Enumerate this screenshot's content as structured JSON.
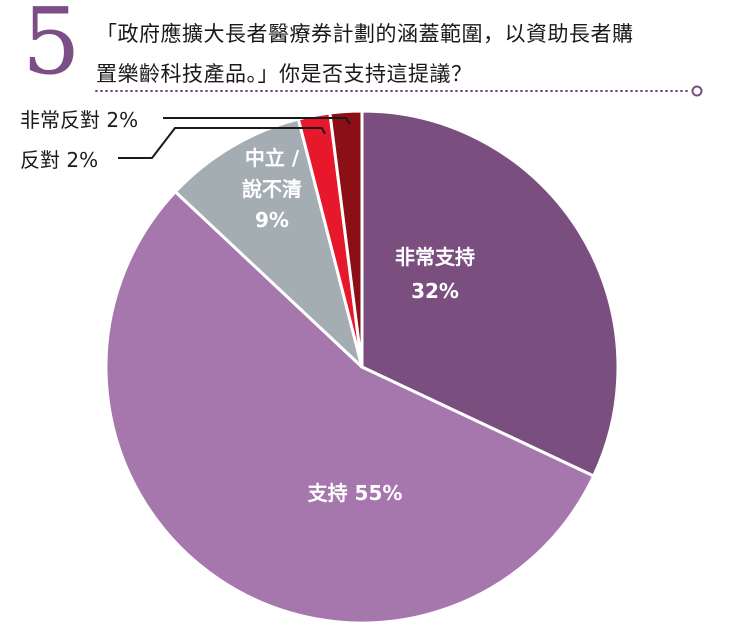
{
  "question": {
    "number": "5",
    "line1": "「政府應擴大長者醫療券計劃的涵蓋範圍，以資助長者購",
    "line2": "置樂齡科技產品。」你是否支持這提議？"
  },
  "colors": {
    "accent": "#7b4f86",
    "strongly_support": "#7a4f80",
    "support": "#a677ad",
    "neutral": "#a3adb2",
    "oppose": "#e8182c",
    "strongly_oppose": "#8b0f14"
  },
  "chart_data": {
    "type": "pie",
    "slices": [
      {
        "label": "非常支持",
        "value": 32,
        "value_label": "32%",
        "color": "#7a4f80"
      },
      {
        "label": "支持",
        "value": 55,
        "value_label": "55%",
        "color": "#a677ad"
      },
      {
        "label": "中立 / 說不清",
        "value": 9,
        "value_label": "9%",
        "color": "#a3adb2"
      },
      {
        "label": "反對",
        "value": 2,
        "value_label": "2%",
        "color": "#e8182c"
      },
      {
        "label": "非常反對",
        "value": 2,
        "value_label": "2%",
        "color": "#8b0f14"
      }
    ],
    "external_labels": {
      "strongly_oppose": "非常反對 2%",
      "oppose": "反對 2%"
    },
    "inside_labels": {
      "strongly_support": [
        "非常支持",
        "32%"
      ],
      "support": [
        "支持 55%"
      ],
      "neutral": [
        "中立 /",
        "說不清",
        "9%"
      ]
    }
  }
}
